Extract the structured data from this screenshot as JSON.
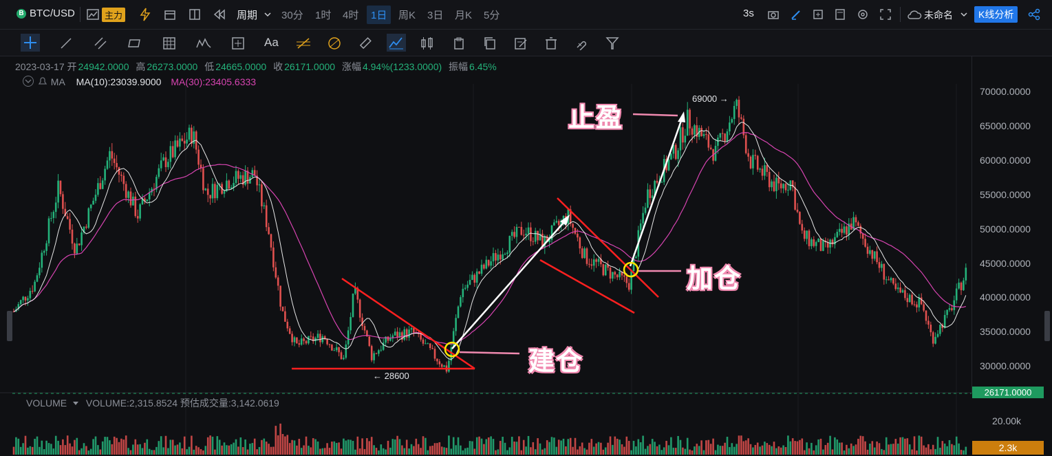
{
  "header": {
    "symbol": "BTC/USD",
    "symbol_icon": "B",
    "badge": "主力",
    "periods": [
      "周期",
      "30分",
      "1时",
      "4时",
      "1日",
      "周K",
      "3日",
      "月K",
      "5分"
    ],
    "active_period": "1日",
    "refresh": "3s",
    "layout_name": "未命名",
    "analysis_button": "K线分析"
  },
  "ohlc": {
    "date": "2023-03-17",
    "open_label": "开",
    "open": "24942.0000",
    "high_label": "高",
    "high": "26273.0000",
    "low_label": "低",
    "low": "24665.0000",
    "close_label": "收",
    "close": "26171.0000",
    "change_label": "涨幅",
    "change": "4.94%(1233.0000)",
    "amplitude_label": "振幅",
    "amplitude": "6.45%"
  },
  "indicators": {
    "ma_label": "MA",
    "ma10": "MA(10):23039.9000",
    "ma30": "MA(30):23405.6333",
    "ma10_color": "#e1e3e7",
    "ma30_color": "#d744b1"
  },
  "price_axis": {
    "ticks": [
      "70000.0000",
      "65000.0000",
      "60000.0000",
      "55000.0000",
      "50000.0000",
      "45000.0000",
      "40000.0000",
      "35000.0000",
      "30000.0000"
    ],
    "last_price": "26171.0000",
    "last_price_color": "#1e9a5f"
  },
  "volume": {
    "label": "VOLUME",
    "value": "VOLUME:2,315.8524",
    "estimate": "预估成交量:3,142.0619",
    "tick": "20.00k",
    "current": "2.3k"
  },
  "annotations": {
    "take_profit": "止盈",
    "add_position": "加仓",
    "open_position": "建仓",
    "high_label": "69000 →",
    "low_label": "← 28600"
  },
  "colors": {
    "up": "#24b27a",
    "down": "#e0504f",
    "trendline": "#ff2020",
    "circle": "#ffe600",
    "arrow": "#ffffff",
    "pink": "#f08ab0"
  },
  "drawing_tools": [
    "crosshair-icon",
    "line-icon",
    "parallel-channel-icon",
    "rectangle-icon",
    "grid-icon",
    "pattern-icon",
    "measure-icon",
    "text-icon",
    "fib-icon",
    "gann-icon",
    "ruler-icon",
    "brush-icon",
    "candle-icon",
    "clipboard-icon",
    "copy-icon",
    "note-icon",
    "trash-icon",
    "magnet-icon",
    "filter-icon"
  ]
}
